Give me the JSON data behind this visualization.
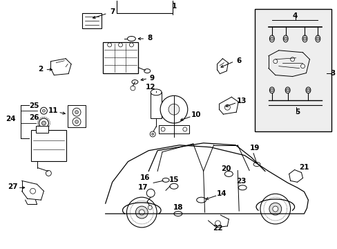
{
  "bg_color": "#ffffff",
  "line_color": "#000000",
  "fig_width": 4.89,
  "fig_height": 3.6,
  "dpi": 100,
  "box_fill": "#eeeeee"
}
